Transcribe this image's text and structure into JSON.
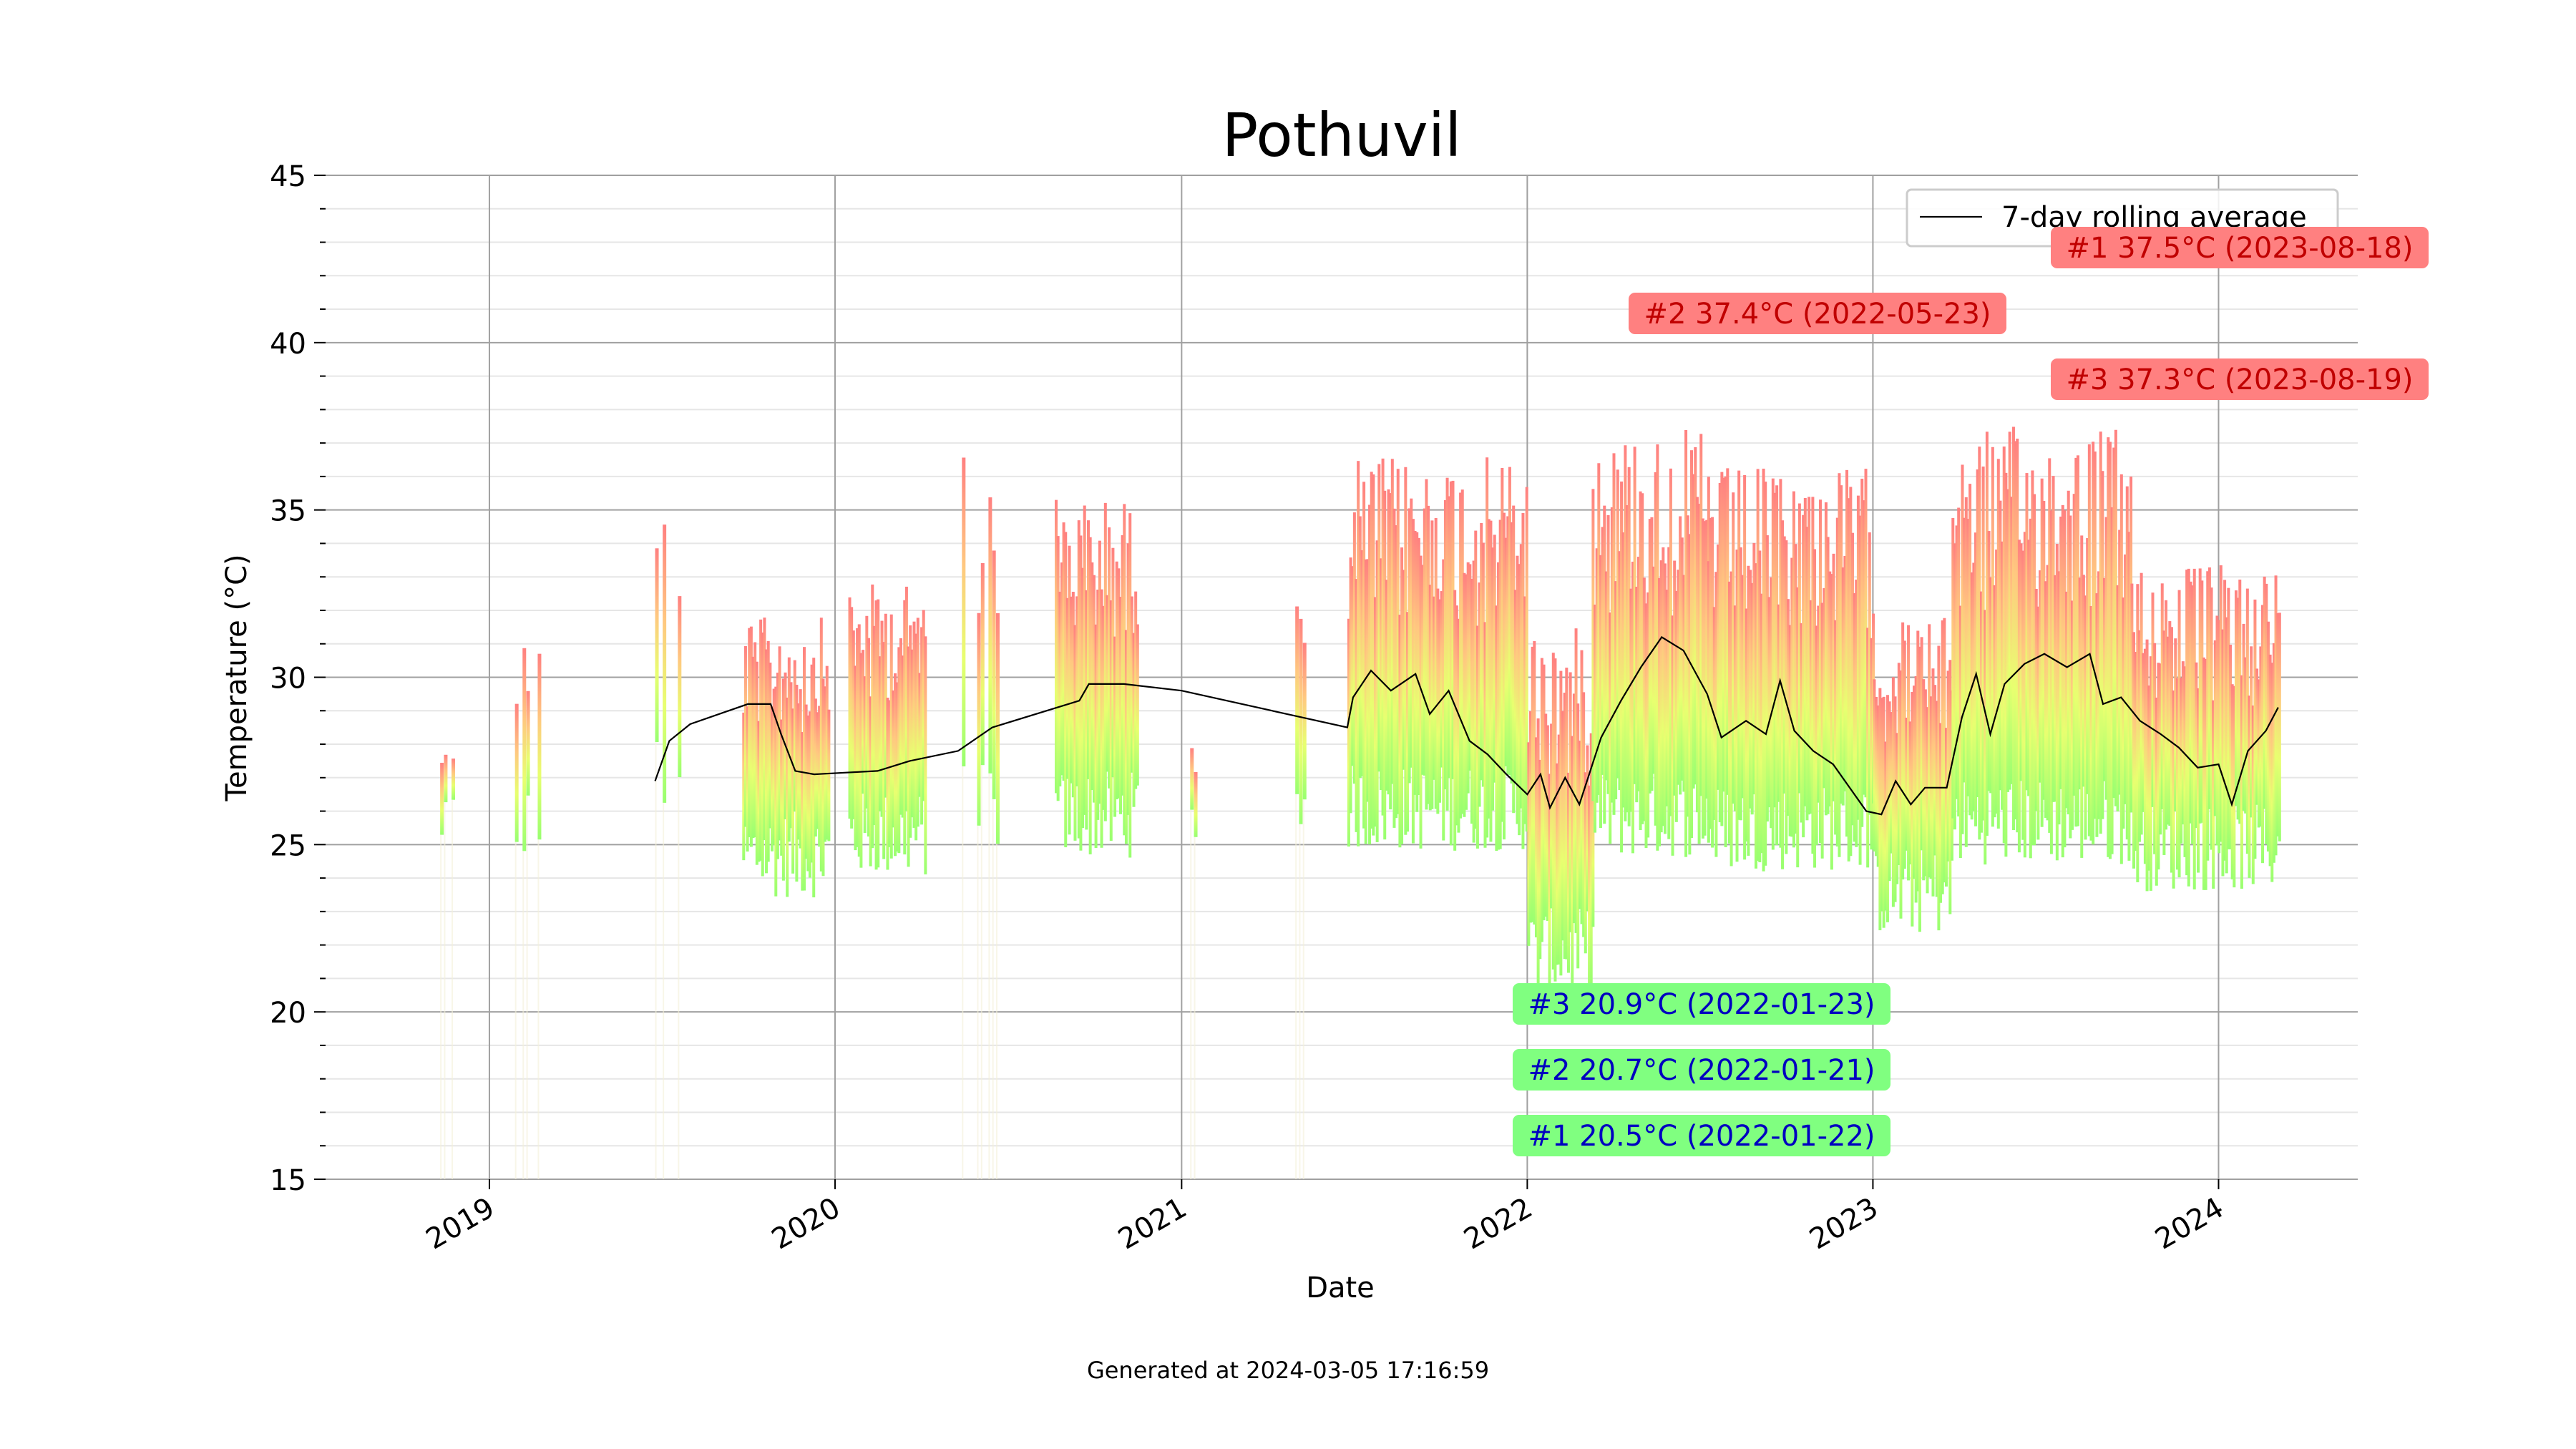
{
  "chart_data": {
    "type": "bar",
    "title": "Pothuvil",
    "xlabel": "Date",
    "ylabel": "Temperature (°C)",
    "ylim": [
      15,
      45
    ],
    "xlim": [
      "2018-07-12",
      "2024-05-27"
    ],
    "y_major_ticks": [
      15,
      20,
      25,
      30,
      35,
      40,
      45
    ],
    "y_minor_step": 1,
    "x_tick_labels": [
      "2019",
      "2020",
      "2021",
      "2022",
      "2023",
      "2024"
    ],
    "x_ticks": [
      "2019-01-01",
      "2020-01-01",
      "2021-01-01",
      "2022-01-01",
      "2023-01-01",
      "2024-01-01"
    ],
    "grid": true,
    "legend": {
      "position": "top-right",
      "entries": [
        "7-day rolling average"
      ]
    },
    "bar_gradient": [
      "#98ff70",
      "#e8ff70",
      "#ffc880",
      "#ff8080"
    ],
    "series": [
      {
        "name": "7-day rolling average",
        "color": "#000000",
        "points": [
          [
            "2019-06-25",
            26.9
          ],
          [
            "2019-07-10",
            28.1
          ],
          [
            "2019-08-01",
            28.6
          ],
          [
            "2019-10-01",
            29.2
          ],
          [
            "2019-10-25",
            29.2
          ],
          [
            "2019-11-05",
            28.3
          ],
          [
            "2019-11-20",
            27.2
          ],
          [
            "2019-12-10",
            27.1
          ],
          [
            "2020-02-15",
            27.2
          ],
          [
            "2020-03-20",
            27.5
          ],
          [
            "2020-05-10",
            27.8
          ],
          [
            "2020-06-15",
            28.5
          ],
          [
            "2020-09-15",
            29.3
          ],
          [
            "2020-09-25",
            29.8
          ],
          [
            "2020-11-01",
            29.8
          ],
          [
            "2021-01-01",
            29.6
          ],
          [
            "2021-06-25",
            28.5
          ],
          [
            "2021-07-01",
            29.4
          ],
          [
            "2021-07-20",
            30.2
          ],
          [
            "2021-08-10",
            29.6
          ],
          [
            "2021-09-05",
            30.1
          ],
          [
            "2021-09-20",
            28.9
          ],
          [
            "2021-10-10",
            29.6
          ],
          [
            "2021-11-01",
            28.1
          ],
          [
            "2021-11-20",
            27.7
          ],
          [
            "2021-12-10",
            27.1
          ],
          [
            "2022-01-01",
            26.5
          ],
          [
            "2022-01-15",
            27.1
          ],
          [
            "2022-01-25",
            26.1
          ],
          [
            "2022-02-10",
            27.0
          ],
          [
            "2022-02-25",
            26.2
          ],
          [
            "2022-03-20",
            28.2
          ],
          [
            "2022-04-10",
            29.3
          ],
          [
            "2022-05-01",
            30.3
          ],
          [
            "2022-05-23",
            31.2
          ],
          [
            "2022-06-15",
            30.8
          ],
          [
            "2022-07-10",
            29.5
          ],
          [
            "2022-07-25",
            28.2
          ],
          [
            "2022-08-20",
            28.7
          ],
          [
            "2022-09-10",
            28.3
          ],
          [
            "2022-09-25",
            29.9
          ],
          [
            "2022-10-10",
            28.4
          ],
          [
            "2022-10-30",
            27.8
          ],
          [
            "2022-11-20",
            27.4
          ],
          [
            "2022-12-10",
            26.6
          ],
          [
            "2022-12-25",
            26.0
          ],
          [
            "2023-01-10",
            25.9
          ],
          [
            "2023-01-25",
            26.9
          ],
          [
            "2023-02-10",
            26.2
          ],
          [
            "2023-02-25",
            26.7
          ],
          [
            "2023-03-20",
            26.7
          ],
          [
            "2023-04-05",
            28.8
          ],
          [
            "2023-04-20",
            30.1
          ],
          [
            "2023-05-05",
            28.3
          ],
          [
            "2023-05-20",
            29.8
          ],
          [
            "2023-06-10",
            30.4
          ],
          [
            "2023-07-01",
            30.7
          ],
          [
            "2023-07-25",
            30.3
          ],
          [
            "2023-08-18",
            30.7
          ],
          [
            "2023-09-01",
            29.2
          ],
          [
            "2023-09-20",
            29.4
          ],
          [
            "2023-10-10",
            28.7
          ],
          [
            "2023-11-01",
            28.3
          ],
          [
            "2023-11-20",
            27.9
          ],
          [
            "2023-12-10",
            27.3
          ],
          [
            "2024-01-01",
            27.4
          ],
          [
            "2024-01-15",
            26.2
          ],
          [
            "2024-02-01",
            27.8
          ],
          [
            "2024-02-20",
            28.4
          ],
          [
            "2024-03-04",
            29.1
          ]
        ]
      }
    ],
    "daily_range_segments": [
      {
        "from": "2018-11-10",
        "to": "2018-11-22",
        "low": 24.5,
        "high": 28.3
      },
      {
        "from": "2019-01-28",
        "to": "2019-02-25",
        "low": 24.2,
        "high": 31.5
      },
      {
        "from": "2019-06-25",
        "to": "2019-07-25",
        "low": 25.8,
        "high": 35.2
      },
      {
        "from": "2019-09-25",
        "to": "2019-12-25",
        "low": 23.4,
        "high": 31.8
      },
      {
        "from": "2020-01-15",
        "to": "2020-04-05",
        "low": 24.0,
        "high": 32.8
      },
      {
        "from": "2020-05-10",
        "to": "2020-06-20",
        "low": 24.8,
        "high": 36.7
      },
      {
        "from": "2020-08-20",
        "to": "2020-11-15",
        "low": 24.6,
        "high": 35.4
      },
      {
        "from": "2021-01-10",
        "to": "2021-01-20",
        "low": 24.3,
        "high": 28.0
      },
      {
        "from": "2021-05-01",
        "to": "2021-05-10",
        "low": 25.3,
        "high": 32.2
      },
      {
        "from": "2021-06-25",
        "to": "2021-12-31",
        "low": 24.8,
        "high": 36.6
      },
      {
        "from": "2022-01-01",
        "to": "2022-03-10",
        "low": 20.5,
        "high": 31.5
      },
      {
        "from": "2022-03-10",
        "to": "2022-07-10",
        "low": 24.6,
        "high": 37.4
      },
      {
        "from": "2022-07-10",
        "to": "2022-12-31",
        "low": 24.2,
        "high": 36.3
      },
      {
        "from": "2023-01-01",
        "to": "2023-03-25",
        "low": 22.3,
        "high": 31.8
      },
      {
        "from": "2023-03-25",
        "to": "2023-09-30",
        "low": 24.4,
        "high": 37.5
      },
      {
        "from": "2023-09-30",
        "to": "2024-03-04",
        "low": 23.6,
        "high": 33.4
      }
    ],
    "annotations": [
      {
        "label": "#1 37.5°C (2023-08-18)",
        "kind": "high",
        "bg": "#ff8080",
        "fg": "#c00000"
      },
      {
        "label": "#2 37.4°C (2022-05-23)",
        "kind": "high",
        "bg": "#ff8080",
        "fg": "#c00000"
      },
      {
        "label": "#3 37.3°C (2023-08-19)",
        "kind": "high",
        "bg": "#ff8080",
        "fg": "#c00000"
      },
      {
        "label": "#3 20.9°C (2022-01-23)",
        "kind": "low",
        "bg": "#80ff80",
        "fg": "#0000c0"
      },
      {
        "label": "#2 20.7°C (2022-01-21)",
        "kind": "low",
        "bg": "#80ff80",
        "fg": "#0000c0"
      },
      {
        "label": "#1 20.5°C (2022-01-22)",
        "kind": "low",
        "bg": "#80ff80",
        "fg": "#0000c0"
      }
    ],
    "footer": "Generated at 2024-03-05 17:16:59"
  }
}
